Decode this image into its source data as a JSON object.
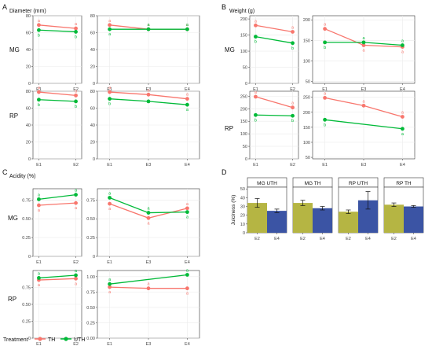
{
  "figure": {
    "panels": {
      "A": {
        "letter": "A",
        "ylabel": "Diameter (mm)"
      },
      "B": {
        "letter": "B",
        "ylabel": "Weight (g)"
      },
      "C": {
        "letter": "C",
        "ylabel": "Acidity (%)"
      },
      "D": {
        "letter": "D",
        "ylabel": "Juiciness (%)"
      }
    },
    "row_labels": [
      "MG",
      "RP"
    ],
    "legend": {
      "title": "Treatment",
      "items": [
        "TH",
        "UTH"
      ]
    },
    "colors": {
      "TH": "#F8766D",
      "UTH": "#00BA38",
      "bar_E2": "#B5B543",
      "bar_E4": "#3B54A4",
      "grid": "#EBEBEB",
      "panel_border": "#333333"
    }
  },
  "chart_data": [
    {
      "panel": "A",
      "row": "MG",
      "type": "line",
      "categories": [
        "E1",
        "E2"
      ],
      "yticks": [
        0,
        20,
        40,
        60,
        80
      ],
      "ylim": [
        0,
        80
      ],
      "series": [
        {
          "name": "TH",
          "values": [
            69,
            65
          ],
          "letters": [
            "a",
            "a"
          ]
        },
        {
          "name": "UTH",
          "values": [
            63,
            61
          ],
          "letters": [
            "b",
            "b"
          ]
        }
      ]
    },
    {
      "panel": "A",
      "row": "MG",
      "type": "line",
      "categories": [
        "E1",
        "E3",
        "E4"
      ],
      "yticks": [
        0,
        20,
        40,
        60,
        80
      ],
      "ylim": [
        0,
        80
      ],
      "series": [
        {
          "name": "TH",
          "values": [
            69,
            64,
            64
          ],
          "letters": [
            "a",
            "a",
            "a"
          ]
        },
        {
          "name": "UTH",
          "values": [
            64,
            64,
            64
          ],
          "letters": [
            "a",
            "a",
            "a"
          ]
        }
      ]
    },
    {
      "panel": "A",
      "row": "RP",
      "type": "line",
      "categories": [
        "E1",
        "E2"
      ],
      "yticks": [
        0,
        20,
        40,
        60,
        80
      ],
      "ylim": [
        0,
        80
      ],
      "series": [
        {
          "name": "TH",
          "values": [
            79,
            75
          ],
          "letters": [
            "a",
            "a"
          ]
        },
        {
          "name": "UTH",
          "values": [
            70,
            68
          ],
          "letters": [
            "b",
            "b"
          ]
        }
      ]
    },
    {
      "panel": "A",
      "row": "RP",
      "type": "line",
      "categories": [
        "E1",
        "E3",
        "E4"
      ],
      "yticks": [
        0,
        20,
        40,
        60,
        80
      ],
      "ylim": [
        0,
        80
      ],
      "series": [
        {
          "name": "TH",
          "values": [
            79,
            76,
            71
          ],
          "letters": [
            "a",
            "a",
            "a"
          ]
        },
        {
          "name": "UTH",
          "values": [
            71,
            68,
            64
          ],
          "letters": [
            "b",
            "",
            "a"
          ]
        }
      ]
    },
    {
      "panel": "B",
      "row": "MG",
      "type": "line",
      "categories": [
        "E1",
        "E2"
      ],
      "yticks": [
        0,
        50,
        100,
        150,
        200
      ],
      "ylim": [
        0,
        210
      ],
      "series": [
        {
          "name": "TH",
          "values": [
            180,
            160
          ],
          "letters": [
            "a",
            "a"
          ]
        },
        {
          "name": "UTH",
          "values": [
            145,
            125
          ],
          "letters": [
            "b",
            "b"
          ]
        }
      ]
    },
    {
      "panel": "B",
      "row": "MG",
      "type": "line",
      "categories": [
        "E1",
        "E3",
        "E4"
      ],
      "yticks": [
        50,
        100,
        150,
        200
      ],
      "ylim": [
        45,
        210
      ],
      "series": [
        {
          "name": "TH",
          "values": [
            178,
            138,
            134
          ],
          "letters": [
            "a",
            "a",
            "a"
          ]
        },
        {
          "name": "UTH",
          "values": [
            145,
            145,
            138
          ],
          "letters": [
            "b",
            "a",
            "a"
          ]
        }
      ]
    },
    {
      "panel": "B",
      "row": "RP",
      "type": "line",
      "categories": [
        "E1",
        "E2"
      ],
      "yticks": [
        0,
        50,
        100,
        150,
        200,
        250
      ],
      "ylim": [
        0,
        270
      ],
      "series": [
        {
          "name": "TH",
          "values": [
            248,
            205
          ],
          "letters": [
            "a",
            "a"
          ]
        },
        {
          "name": "UTH",
          "values": [
            175,
            172
          ],
          "letters": [
            "b",
            "b"
          ]
        }
      ]
    },
    {
      "panel": "B",
      "row": "RP",
      "type": "line",
      "categories": [
        "E1",
        "E3",
        "E4"
      ],
      "yticks": [
        50,
        100,
        150,
        200,
        250
      ],
      "ylim": [
        45,
        270
      ],
      "series": [
        {
          "name": "TH",
          "values": [
            248,
            222,
            185
          ],
          "letters": [
            "a",
            "a",
            "a"
          ]
        },
        {
          "name": "UTH",
          "values": [
            175,
            "",
            145
          ],
          "letters": [
            "b",
            "",
            "a"
          ]
        }
      ]
    },
    {
      "panel": "C",
      "row": "MG",
      "type": "line",
      "categories": [
        "E1",
        "E2"
      ],
      "yticks": [
        0,
        0.25,
        0.5,
        0.75
      ],
      "ylim": [
        0,
        0.9
      ],
      "series": [
        {
          "name": "TH",
          "values": [
            0.68,
            0.71
          ],
          "letters": [
            "a",
            "a"
          ]
        },
        {
          "name": "UTH",
          "values": [
            0.76,
            0.82
          ],
          "letters": [
            "a",
            "a"
          ]
        }
      ]
    },
    {
      "panel": "C",
      "row": "MG",
      "type": "line",
      "categories": [
        "E1",
        "E3",
        "E4"
      ],
      "yticks": [
        0,
        0.25,
        0.5,
        0.75
      ],
      "ylim": [
        0,
        0.9
      ],
      "series": [
        {
          "name": "TH",
          "values": [
            0.7,
            0.51,
            0.64
          ],
          "letters": [
            "a",
            "a",
            "a"
          ]
        },
        {
          "name": "UTH",
          "values": [
            0.78,
            0.58,
            0.59
          ],
          "letters": [
            "a",
            "a",
            "a"
          ]
        }
      ]
    },
    {
      "panel": "C",
      "row": "RP",
      "type": "line",
      "categories": [
        "E1",
        "E2"
      ],
      "yticks": [
        0,
        0.25,
        0.5,
        0.75
      ],
      "ylim": [
        0,
        1.0
      ],
      "series": [
        {
          "name": "TH",
          "values": [
            0.86,
            0.88
          ],
          "letters": [
            "a",
            "a"
          ]
        },
        {
          "name": "UTH",
          "values": [
            0.89,
            0.93
          ],
          "letters": [
            "a",
            "a"
          ]
        }
      ]
    },
    {
      "panel": "C",
      "row": "RP",
      "type": "line",
      "categories": [
        "E1",
        "E3",
        "E4"
      ],
      "yticks": [
        0,
        0.25,
        0.5,
        0.75,
        1.0
      ],
      "yticklabels": [
        "0.00",
        "0.25",
        "0.50",
        "0.75",
        "1.00"
      ],
      "ylim": [
        0,
        1.1
      ],
      "series": [
        {
          "name": "TH",
          "values": [
            0.83,
            0.81,
            0.81
          ],
          "letters": [
            "a",
            "a",
            "a"
          ]
        },
        {
          "name": "UTH",
          "values": [
            0.88,
            "",
            1.03
          ],
          "letters": [
            "a",
            "",
            "a"
          ]
        }
      ]
    },
    {
      "panel": "D",
      "type": "bar",
      "title": "MG UTH",
      "categories": [
        "E2",
        "E4"
      ],
      "values": [
        34,
        25
      ],
      "errors": [
        5,
        2
      ],
      "yticks": [
        0,
        10,
        20,
        30,
        40,
        50
      ],
      "ylim": [
        0,
        52
      ]
    },
    {
      "panel": "D",
      "type": "bar",
      "title": "MG TH",
      "categories": [
        "E2",
        "E4"
      ],
      "values": [
        34,
        28
      ],
      "errors": [
        3,
        2
      ],
      "yticks": [
        0,
        10,
        20,
        30,
        40,
        50
      ],
      "ylim": [
        0,
        52
      ]
    },
    {
      "panel": "D",
      "type": "bar",
      "title": "RP UTH",
      "categories": [
        "E2",
        "E4"
      ],
      "values": [
        24,
        37
      ],
      "errors": [
        2,
        10
      ],
      "yticks": [
        0,
        10,
        20,
        30,
        40,
        50
      ],
      "ylim": [
        0,
        52
      ]
    },
    {
      "panel": "D",
      "type": "bar",
      "title": "RP TH",
      "categories": [
        "E2",
        "E4"
      ],
      "values": [
        32,
        30
      ],
      "errors": [
        2,
        1
      ],
      "yticks": [
        0,
        10,
        20,
        30,
        40,
        50
      ],
      "ylim": [
        0,
        52
      ]
    }
  ]
}
